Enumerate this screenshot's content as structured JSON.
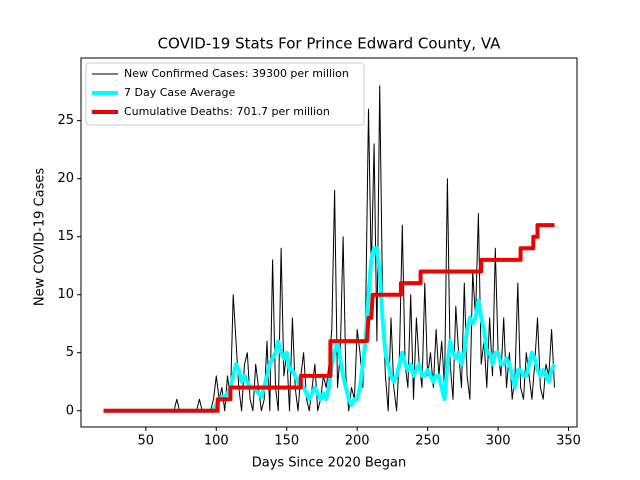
{
  "chart_data": {
    "type": "line",
    "title": "COVID-19 Stats For Prince Edward County, VA",
    "x_label": "Days Since 2020 Began",
    "y_label": "New COVID-19 Cases",
    "xlim": [
      4,
      356
    ],
    "ylim": [
      -1.4,
      30.4
    ],
    "xticks": [
      50,
      100,
      150,
      200,
      250,
      300,
      350
    ],
    "yticks": [
      0,
      5,
      10,
      15,
      20,
      25
    ],
    "legend": "upper left",
    "series": [
      {
        "name": "New Confirmed Cases: 39300 per million",
        "color": "#000000",
        "width": 1,
        "x": [
          20,
          22,
          24,
          26,
          28,
          30,
          32,
          34,
          36,
          38,
          40,
          42,
          44,
          46,
          48,
          50,
          52,
          54,
          56,
          58,
          60,
          62,
          64,
          66,
          68,
          70,
          72,
          74,
          76,
          78,
          80,
          82,
          84,
          86,
          88,
          90,
          92,
          94,
          96,
          98,
          100,
          102,
          104,
          106,
          108,
          110,
          112,
          114,
          116,
          118,
          120,
          122,
          124,
          126,
          128,
          130,
          132,
          134,
          136,
          138,
          140,
          142,
          144,
          146,
          148,
          150,
          152,
          154,
          156,
          158,
          160,
          162,
          164,
          166,
          168,
          170,
          172,
          174,
          176,
          178,
          180,
          182,
          184,
          186,
          188,
          190,
          192,
          194,
          196,
          198,
          200,
          202,
          204,
          206,
          208,
          210,
          212,
          214,
          216,
          218,
          220,
          222,
          224,
          226,
          228,
          230,
          232,
          234,
          236,
          238,
          240,
          242,
          244,
          246,
          248,
          250,
          252,
          254,
          256,
          258,
          260,
          262,
          264,
          266,
          268,
          270,
          272,
          274,
          276,
          278,
          280,
          282,
          284,
          286,
          288,
          290,
          292,
          294,
          296,
          298,
          300,
          302,
          304,
          306,
          308,
          310,
          312,
          314,
          316,
          318,
          320,
          322,
          324,
          326,
          328,
          330,
          332,
          334,
          336,
          338,
          340
        ],
        "values": [
          0,
          0,
          0,
          0,
          0,
          0,
          0,
          0,
          0,
          0,
          0,
          0,
          0,
          0,
          0,
          0,
          0,
          0,
          0,
          0,
          0,
          0,
          0,
          0,
          0,
          0,
          1,
          0,
          0,
          0,
          0,
          0,
          0,
          0,
          1,
          0,
          0,
          0,
          0,
          1,
          3,
          1,
          2,
          0,
          3,
          1,
          10,
          6,
          2,
          0,
          4,
          5,
          1,
          0,
          4,
          2,
          0,
          1,
          6,
          0,
          13,
          2,
          0,
          14,
          3,
          5,
          0,
          8,
          2,
          0,
          3,
          5,
          1,
          0,
          2,
          4,
          0,
          1,
          3,
          2,
          4,
          7,
          19,
          2,
          5,
          15,
          3,
          0,
          2,
          1,
          7,
          5,
          2,
          8,
          26,
          12,
          23,
          6,
          28,
          10,
          3,
          0,
          8,
          2,
          0,
          5,
          16,
          4,
          2,
          10,
          1,
          8,
          4,
          2,
          11,
          3,
          5,
          2,
          7,
          3,
          6,
          2,
          20,
          4,
          1,
          9,
          5,
          2,
          11,
          3,
          1,
          12,
          8,
          17,
          4,
          6,
          2,
          8,
          3,
          14,
          5,
          3,
          8,
          2,
          5,
          1,
          3,
          11,
          2,
          1,
          5,
          3,
          1,
          4,
          8,
          2,
          1,
          4,
          3,
          7,
          2
        ]
      },
      {
        "name": "7 Day Case Average",
        "color": "#00ffff",
        "width": 4,
        "x": [
          20,
          22,
          24,
          26,
          28,
          30,
          32,
          34,
          36,
          38,
          40,
          42,
          44,
          46,
          48,
          50,
          52,
          54,
          56,
          58,
          60,
          62,
          64,
          66,
          68,
          70,
          72,
          74,
          76,
          78,
          80,
          82,
          84,
          86,
          88,
          90,
          92,
          94,
          96,
          98,
          100,
          102,
          104,
          106,
          108,
          110,
          112,
          114,
          116,
          118,
          120,
          122,
          124,
          126,
          128,
          130,
          132,
          134,
          136,
          138,
          140,
          142,
          144,
          146,
          148,
          150,
          152,
          154,
          156,
          158,
          160,
          162,
          164,
          166,
          168,
          170,
          172,
          174,
          176,
          178,
          180,
          182,
          184,
          186,
          188,
          190,
          192,
          194,
          196,
          198,
          200,
          202,
          204,
          206,
          208,
          210,
          212,
          214,
          216,
          218,
          220,
          222,
          224,
          226,
          228,
          230,
          232,
          234,
          236,
          238,
          240,
          242,
          244,
          246,
          248,
          250,
          252,
          254,
          256,
          258,
          260,
          262,
          264,
          266,
          268,
          270,
          272,
          274,
          276,
          278,
          280,
          282,
          284,
          286,
          288,
          290,
          292,
          294,
          296,
          298,
          300,
          302,
          304,
          306,
          308,
          310,
          312,
          314,
          316,
          318,
          320,
          322,
          324,
          326,
          328,
          330,
          332,
          334,
          336,
          338,
          340
        ],
        "values": [
          0,
          0,
          0,
          0,
          0,
          0,
          0,
          0,
          0,
          0,
          0,
          0,
          0,
          0,
          0,
          0,
          0,
          0,
          0,
          0,
          0,
          0,
          0,
          0,
          0,
          0,
          0,
          0,
          0,
          0,
          0,
          0,
          0,
          0,
          0,
          0,
          0,
          0,
          0,
          0,
          0.5,
          1,
          1.2,
          1.2,
          1.5,
          2,
          3,
          4,
          3.5,
          2.5,
          3,
          2.5,
          2,
          2,
          1.8,
          1.5,
          1.2,
          2,
          3,
          4,
          4.5,
          5,
          6,
          5,
          4.5,
          5,
          3.5,
          3.5,
          3,
          2.5,
          2,
          2,
          1.5,
          1,
          1.5,
          2,
          1.5,
          1,
          1.5,
          1,
          2,
          4,
          5,
          6,
          4.5,
          3,
          2,
          1,
          0.5,
          1,
          1,
          2,
          4,
          6,
          10,
          13,
          14,
          14,
          12,
          8,
          5,
          4,
          3,
          2.5,
          3,
          4,
          5,
          4,
          3.5,
          4,
          3,
          3.5,
          4,
          3,
          3,
          3.5,
          3,
          2.5,
          3,
          3,
          2,
          1,
          4,
          6,
          5,
          4.5,
          5,
          4,
          5,
          7,
          8,
          7.5,
          8,
          9.5,
          8,
          7,
          5,
          5,
          4,
          5,
          5,
          4,
          4,
          4.5,
          4,
          3,
          2,
          3.5,
          3.5,
          3,
          3,
          4,
          5,
          4.5,
          3.5,
          3,
          3.5,
          3,
          2.5,
          3.5,
          4
        ]
      },
      {
        "name": "Cumulative Deaths: 701.7 per million",
        "color": "#ee0000",
        "width": 4,
        "x": [
          20,
          101,
          101,
          110,
          110,
          160,
          160,
          181,
          181,
          207,
          208,
          210,
          211,
          231,
          231,
          245,
          245,
          288,
          288,
          316,
          316,
          325,
          325,
          328,
          328,
          340
        ],
        "values": [
          0,
          0,
          1,
          1,
          2,
          2,
          3,
          3,
          6,
          6,
          8,
          8,
          10,
          10,
          11,
          11,
          12,
          12,
          13,
          13,
          14,
          14,
          15,
          15,
          16,
          16
        ]
      }
    ]
  }
}
